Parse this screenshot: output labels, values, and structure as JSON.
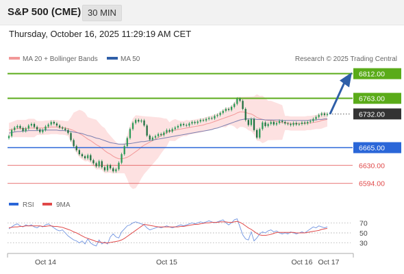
{
  "header": {
    "title": "S&P 500 (CME)",
    "interval": "30 MIN",
    "timestamp": "Thursday, October 16, 2025 11:29:19 AM CET"
  },
  "legend": {
    "ma20_label": "MA 20 + Bollinger Bands",
    "ma50_label": "MA 50",
    "copyright": "Research © 2025 Trading Central"
  },
  "rsi_legend": {
    "rsi_label": "RSI",
    "ma_label": "9MA"
  },
  "colors": {
    "green": "#5aab19",
    "blue": "#2a66d8",
    "red": "#e04848",
    "arrow": "#2f5fa8",
    "last_bg": "#333333",
    "candle": "#2b9a57",
    "band": "#fde1e1",
    "ma20": "#f29898",
    "ma50": "#7a7fb0"
  },
  "chart_data": {
    "type": "candlestick",
    "instrument": "S&P 500 (CME)",
    "interval": "30 MIN",
    "x_tick_labels": [
      "Oct 14",
      "Oct 15",
      "Oct 16",
      "Oct 17"
    ],
    "y_range": [
      6580,
      6825
    ],
    "levels": [
      {
        "value": 6812.0,
        "label": "6812.00",
        "kind": "resistance"
      },
      {
        "value": 6763.0,
        "label": "6763.00",
        "kind": "resistance"
      },
      {
        "value": 6732.0,
        "label": "6732.00",
        "kind": "last"
      },
      {
        "value": 6665.0,
        "label": "6665.00",
        "kind": "pivot"
      },
      {
        "value": 6630.0,
        "label": "6630.00",
        "kind": "support"
      },
      {
        "value": 6594.0,
        "label": "6594.00",
        "kind": "support"
      }
    ],
    "close": [
      6688,
      6700,
      6705,
      6708,
      6704,
      6698,
      6703,
      6709,
      6712,
      6706,
      6701,
      6696,
      6700,
      6707,
      6711,
      6716,
      6713,
      6709,
      6705,
      6703,
      6700,
      6694,
      6680,
      6668,
      6660,
      6652,
      6648,
      6644,
      6650,
      6640,
      6634,
      6628,
      6638,
      6626,
      6620,
      6630,
      6624,
      6618,
      6622,
      6635,
      6652,
      6668,
      6684,
      6702,
      6714,
      6720,
      6717,
      6719,
      6709,
      6689,
      6681,
      6685,
      6688,
      6692,
      6690,
      6695,
      6700,
      6697,
      6702,
      6705,
      6708,
      6712,
      6710,
      6709,
      6713,
      6716,
      6714,
      6717,
      6720,
      6719,
      6722,
      6724,
      6723,
      6728,
      6730,
      6734,
      6738,
      6742,
      6740,
      6746,
      6752,
      6762,
      6758,
      6742,
      6720,
      6710,
      6722,
      6700,
      6685,
      6702,
      6715,
      6708,
      6712,
      6716,
      6711,
      6714,
      6718,
      6716,
      6713,
      6712,
      6710,
      6714,
      6711,
      6712,
      6715,
      6713,
      6716,
      6718,
      6722,
      6726,
      6730,
      6733,
      6730,
      6732
    ],
    "ma20": [
      6700,
      6701,
      6702,
      6703,
      6703,
      6703,
      6703,
      6704,
      6704,
      6704,
      6704,
      6704,
      6704,
      6705,
      6705,
      6706,
      6706,
      6706,
      6705,
      6705,
      6704,
      6703,
      6701,
      6699,
      6696,
      6693,
      6690,
      6686,
      6682,
      6679,
      6675,
      6671,
      6668,
      6664,
      6659,
      6655,
      6652,
      6648,
      6645,
      6643,
      6643,
      6644,
      6646,
      6649,
      6653,
      6657,
      6661,
      6666,
      6670,
      6673,
      6676,
      6679,
      6682,
      6685,
      6689,
      6692,
      6695,
      6697,
      6699,
      6700,
      6701,
      6702,
      6703,
      6704,
      6705,
      6706,
      6707,
      6708,
      6709,
      6710,
      6712,
      6713,
      6715,
      6717,
      6719,
      6721,
      6723,
      6725,
      6727,
      6729,
      6731,
      6734,
      6736,
      6736,
      6735,
      6733,
      6732,
      6729,
      6725,
      6723,
      6721,
      6720,
      6719,
      6719,
      6718,
      6717,
      6716,
      6715,
      6714,
      6714,
      6713,
      6713,
      6713,
      6713,
      6713,
      6713,
      6714,
      6714,
      6715,
      6716,
      6717,
      6719,
      6720,
      6721
    ],
    "ma50": [
      6694,
      6695,
      6696,
      6697,
      6697,
      6698,
      6698,
      6699,
      6699,
      6699,
      6699,
      6700,
      6700,
      6700,
      6700,
      6700,
      6700,
      6700,
      6699,
      6699,
      6699,
      6698,
      6697,
      6696,
      6695,
      6694,
      6693,
      6691,
      6689,
      6688,
      6686,
      6684,
      6683,
      6681,
      6679,
      6677,
      6675,
      6674,
      6673,
      6672,
      6672,
      6672,
      6673,
      6673,
      6674,
      6675,
      6676,
      6677,
      6677,
      6678,
      6679,
      6680,
      6681,
      6682,
      6683,
      6684,
      6685,
      6686,
      6687,
      6688,
      6689,
      6690,
      6691,
      6692,
      6693,
      6694,
      6695,
      6696,
      6697,
      6698,
      6699,
      6700,
      6701,
      6703,
      6704,
      6706,
      6708,
      6710,
      6712,
      6714,
      6716,
      6718,
      6720,
      6721,
      6722,
      6722,
      6722,
      6722,
      6721,
      6721,
      6721,
      6720,
      6720,
      6720,
      6720,
      6720,
      6720,
      6719,
      6719,
      6719,
      6719,
      6719,
      6719,
      6719,
      6719,
      6719,
      6719,
      6720,
      6720,
      6720,
      6721,
      6721,
      6722,
      6722
    ],
    "forecast": {
      "from": 6732.0,
      "to": 6812.0
    },
    "rsi": {
      "ticks": [
        70,
        50,
        30
      ],
      "y_range": [
        20,
        80
      ],
      "rsi": [
        58,
        62,
        66,
        68,
        64,
        62,
        66,
        64,
        66,
        62,
        60,
        64,
        62,
        66,
        68,
        64,
        60,
        56,
        54,
        56,
        50,
        44,
        40,
        36,
        34,
        30,
        34,
        28,
        38,
        30,
        26,
        24,
        36,
        28,
        32,
        28,
        42,
        48,
        42,
        40,
        52,
        58,
        64,
        66,
        70,
        72,
        70,
        68,
        66,
        60,
        56,
        58,
        60,
        62,
        60,
        62,
        64,
        62,
        60,
        62,
        64,
        66,
        64,
        66,
        68,
        70,
        68,
        70,
        72,
        70,
        72,
        74,
        72,
        70,
        72,
        74,
        76,
        70,
        66,
        70,
        76,
        78,
        62,
        46,
        38,
        36,
        52,
        34,
        40,
        48,
        52,
        50,
        54,
        56,
        52,
        54,
        50,
        48,
        50,
        48,
        52,
        50,
        48,
        50,
        52,
        50,
        54,
        58,
        62,
        60,
        64,
        62,
        60,
        62
      ],
      "ma9": [
        60,
        61,
        62,
        62,
        63,
        63,
        64,
        64,
        64,
        64,
        64,
        64,
        63,
        63,
        64,
        64,
        63,
        63,
        62,
        61,
        59,
        57,
        55,
        52,
        50,
        47,
        44,
        41,
        39,
        37,
        35,
        33,
        32,
        31,
        30,
        30,
        31,
        32,
        33,
        34,
        36,
        39,
        43,
        47,
        51,
        55,
        59,
        63,
        67,
        66,
        65,
        64,
        63,
        62,
        62,
        62,
        62,
        62,
        62,
        62,
        62,
        63,
        63,
        64,
        65,
        66,
        67,
        67,
        68,
        69,
        70,
        70,
        71,
        71,
        71,
        72,
        72,
        72,
        71,
        71,
        72,
        73,
        71,
        68,
        64,
        60,
        57,
        53,
        49,
        46,
        45,
        45,
        46,
        47,
        49,
        51,
        51,
        51,
        51,
        51,
        51,
        51,
        50,
        50,
        50,
        50,
        51,
        52,
        53,
        54,
        55,
        57,
        58,
        59
      ]
    }
  }
}
